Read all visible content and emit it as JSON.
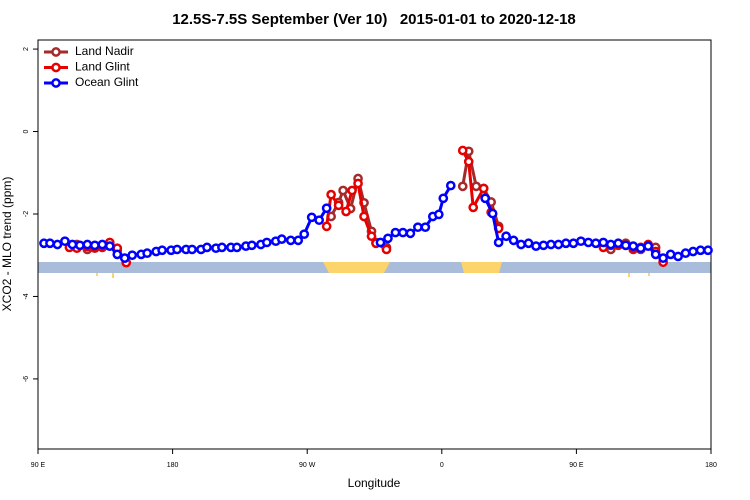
{
  "chart_data": {
    "type": "line",
    "title": "12.5S-7.5S September (Ver 10)   2015-01-01 to 2020-12-18",
    "x_label": "Longitude",
    "y_label": "XCO2 - MLO trend (ppm)",
    "xlim": [
      90,
      540
    ],
    "ylim": [
      -7.7,
      2.22
    ],
    "xticks": [
      {
        "value": 90,
        "label": "90 E"
      },
      180,
      {
        "value": 270,
        "label": "90 W"
      },
      {
        "value": 360,
        "label": "0"
      },
      {
        "value": 450,
        "label": "90 E"
      },
      {
        "value": 540,
        "label": "180"
      }
    ],
    "yticks": [
      2,
      0,
      -2,
      -4,
      -6
    ],
    "legend": "top-left",
    "series": [
      {
        "name": "Land Nadir",
        "color": "#a52a2a",
        "x": [
          116,
          123,
          128,
          133,
          138,
          143,
          null,
          286,
          291,
          294,
          299,
          304,
          308,
          313,
          316,
          323,
          null,
          374,
          378,
          383,
          388,
          393,
          398,
          null,
          473,
          478,
          483,
          488,
          493,
          498,
          503
        ],
        "values": [
          -2.74,
          -2.86,
          -2.83,
          -2.81,
          -2.76,
          -2.88,
          null,
          -2.06,
          -1.72,
          -1.43,
          -1.87,
          -1.14,
          -1.73,
          -2.42,
          -2.69,
          -2.81,
          null,
          -1.33,
          -0.48,
          -1.33,
          -1.38,
          -1.71,
          -2.3,
          null,
          -2.86,
          -2.76,
          -2.71,
          -2.86,
          -2.86,
          -2.76,
          -2.81
        ]
      },
      {
        "name": "Land Glint",
        "color": "#e60000",
        "x": [
          111,
          116,
          123,
          128,
          133,
          138,
          143,
          149,
          null,
          283,
          286,
          291,
          296,
          300,
          304,
          308,
          313,
          316,
          323,
          null,
          374,
          378,
          381,
          388,
          393,
          398,
          null,
          468,
          473,
          478,
          483,
          488,
          493,
          498,
          503,
          508
        ],
        "values": [
          -2.81,
          -2.83,
          -2.79,
          -2.81,
          -2.79,
          -2.69,
          -2.83,
          -3.18,
          null,
          -2.3,
          -1.53,
          -1.79,
          -1.94,
          -1.43,
          -1.26,
          -2.06,
          -2.54,
          -2.71,
          -2.86,
          null,
          -0.46,
          -0.73,
          -1.84,
          -1.38,
          -1.96,
          -2.35,
          null,
          -2.81,
          -2.76,
          -2.74,
          -2.76,
          -2.83,
          -2.81,
          -2.74,
          -2.91,
          -3.17
        ]
      },
      {
        "name": "Ocean Glint",
        "color": "#0000ff",
        "x": [
          94,
          98,
          103,
          108,
          113,
          118,
          123,
          128,
          133,
          138,
          143,
          148,
          153,
          159,
          163,
          169,
          173,
          179,
          183,
          189,
          193,
          199,
          203,
          209,
          213,
          219,
          223,
          229,
          233,
          239,
          243,
          249,
          253,
          259,
          264,
          268,
          273,
          278,
          283,
          null,
          319,
          324,
          329,
          334,
          339,
          344,
          349,
          354,
          358,
          361,
          366,
          null,
          389,
          394,
          398,
          403,
          408,
          413,
          418,
          423,
          428,
          433,
          438,
          443,
          448,
          453,
          458,
          463,
          468,
          473,
          478,
          483,
          488,
          493,
          498,
          503,
          508,
          513,
          518,
          523,
          528,
          533,
          538
        ],
        "values": [
          -2.71,
          -2.71,
          -2.74,
          -2.66,
          -2.74,
          -2.76,
          -2.74,
          -2.76,
          -2.74,
          -2.78,
          -2.98,
          -3.07,
          -3.0,
          -2.98,
          -2.95,
          -2.91,
          -2.88,
          -2.88,
          -2.86,
          -2.86,
          -2.86,
          -2.86,
          -2.81,
          -2.83,
          -2.81,
          -2.81,
          -2.81,
          -2.78,
          -2.76,
          -2.74,
          -2.69,
          -2.66,
          -2.61,
          -2.64,
          -2.64,
          -2.49,
          -2.08,
          -2.15,
          -1.86,
          null,
          -2.69,
          -2.59,
          -2.45,
          -2.45,
          -2.47,
          -2.32,
          -2.32,
          -2.06,
          -2.01,
          -1.62,
          -1.31,
          null,
          -1.62,
          -1.99,
          -2.69,
          -2.54,
          -2.64,
          -2.74,
          -2.71,
          -2.78,
          -2.76,
          -2.74,
          -2.74,
          -2.71,
          -2.71,
          -2.66,
          -2.69,
          -2.71,
          -2.69,
          -2.74,
          -2.71,
          -2.76,
          -2.78,
          -2.83,
          -2.78,
          -2.98,
          -3.07,
          -2.98,
          -3.03,
          -2.95,
          -2.91,
          -2.88,
          -2.88
        ]
      }
    ]
  }
}
